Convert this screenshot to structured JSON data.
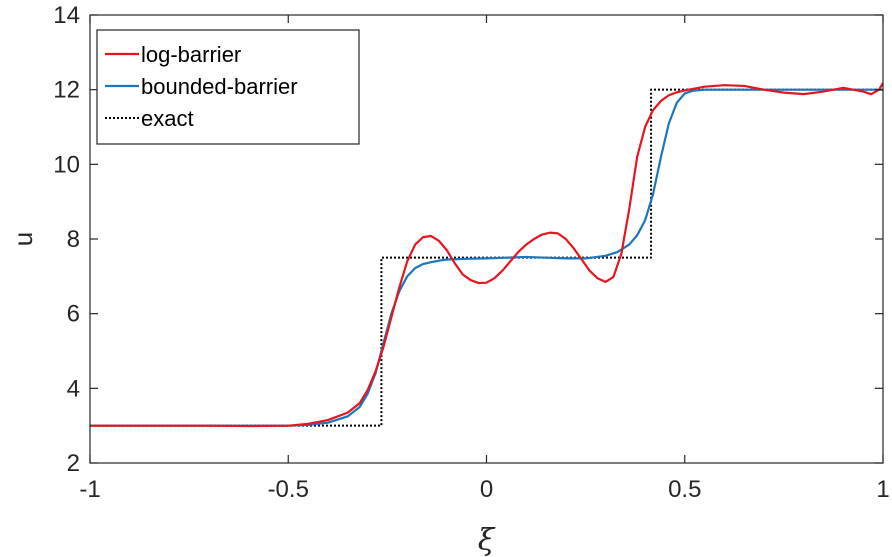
{
  "chart_data": {
    "type": "line",
    "xlabel": "ξ",
    "ylabel": "u",
    "xlim": [
      -1,
      1
    ],
    "ylim": [
      2,
      14
    ],
    "xticks": [
      -1,
      -0.5,
      0,
      0.5,
      1
    ],
    "xtick_labels": [
      "-1",
      "-0.5",
      "0",
      "0.5",
      "1"
    ],
    "yticks": [
      2,
      4,
      6,
      8,
      10,
      12,
      14
    ],
    "ytick_labels": [
      "2",
      "4",
      "6",
      "8",
      "10",
      "12",
      "14"
    ],
    "grid": false,
    "legend_position": "top-left",
    "series": [
      {
        "name": "log-barrier",
        "color": "#e8141e",
        "style": "solid",
        "x": [
          -1,
          -0.9,
          -0.8,
          -0.7,
          -0.6,
          -0.5,
          -0.45,
          -0.4,
          -0.35,
          -0.32,
          -0.3,
          -0.28,
          -0.26,
          -0.24,
          -0.22,
          -0.2,
          -0.18,
          -0.16,
          -0.14,
          -0.12,
          -0.1,
          -0.08,
          -0.06,
          -0.04,
          -0.02,
          0,
          0.02,
          0.04,
          0.06,
          0.08,
          0.1,
          0.12,
          0.14,
          0.16,
          0.18,
          0.2,
          0.22,
          0.24,
          0.26,
          0.28,
          0.3,
          0.32,
          0.34,
          0.36,
          0.38,
          0.4,
          0.42,
          0.44,
          0.46,
          0.48,
          0.5,
          0.55,
          0.6,
          0.65,
          0.7,
          0.75,
          0.8,
          0.85,
          0.9,
          0.95,
          0.97,
          0.99,
          1.0
        ],
        "y": [
          3.0,
          3.0,
          3.0,
          3.0,
          2.99,
          3.0,
          3.05,
          3.15,
          3.35,
          3.6,
          3.95,
          4.45,
          5.1,
          5.9,
          6.7,
          7.4,
          7.85,
          8.05,
          8.08,
          7.95,
          7.7,
          7.35,
          7.05,
          6.9,
          6.82,
          6.83,
          6.95,
          7.15,
          7.4,
          7.65,
          7.85,
          8.0,
          8.12,
          8.17,
          8.15,
          8.0,
          7.75,
          7.45,
          7.15,
          6.95,
          6.85,
          6.98,
          7.6,
          8.8,
          10.2,
          11.0,
          11.45,
          11.7,
          11.85,
          11.93,
          11.98,
          12.08,
          12.12,
          12.1,
          12.0,
          11.92,
          11.88,
          11.95,
          12.05,
          11.95,
          11.88,
          12.0,
          12.18
        ]
      },
      {
        "name": "bounded-barrier",
        "color": "#1a76bd",
        "style": "solid",
        "x": [
          -1,
          -0.9,
          -0.8,
          -0.7,
          -0.6,
          -0.5,
          -0.45,
          -0.4,
          -0.35,
          -0.32,
          -0.3,
          -0.28,
          -0.26,
          -0.24,
          -0.22,
          -0.2,
          -0.18,
          -0.16,
          -0.14,
          -0.12,
          -0.1,
          -0.05,
          0,
          0.05,
          0.1,
          0.15,
          0.2,
          0.25,
          0.3,
          0.33,
          0.36,
          0.38,
          0.4,
          0.42,
          0.44,
          0.46,
          0.48,
          0.5,
          0.52,
          0.55,
          0.6,
          0.7,
          0.8,
          0.9,
          1.0
        ],
        "y": [
          3.0,
          3.0,
          3.0,
          3.0,
          3.0,
          3.0,
          3.02,
          3.08,
          3.25,
          3.5,
          3.85,
          4.4,
          5.2,
          6.0,
          6.6,
          7.0,
          7.22,
          7.33,
          7.38,
          7.42,
          7.45,
          7.47,
          7.48,
          7.5,
          7.52,
          7.5,
          7.48,
          7.48,
          7.55,
          7.65,
          7.85,
          8.1,
          8.5,
          9.2,
          10.2,
          11.1,
          11.65,
          11.9,
          11.97,
          12.0,
          12.0,
          12.0,
          12.0,
          12.0,
          12.0
        ]
      },
      {
        "name": "exact",
        "color": "#000000",
        "style": "dotted",
        "x": [
          -1,
          -0.265,
          -0.265,
          0.415,
          0.415,
          1.0
        ],
        "y": [
          3.0,
          3.0,
          7.5,
          7.5,
          12.0,
          12.0
        ]
      }
    ]
  }
}
